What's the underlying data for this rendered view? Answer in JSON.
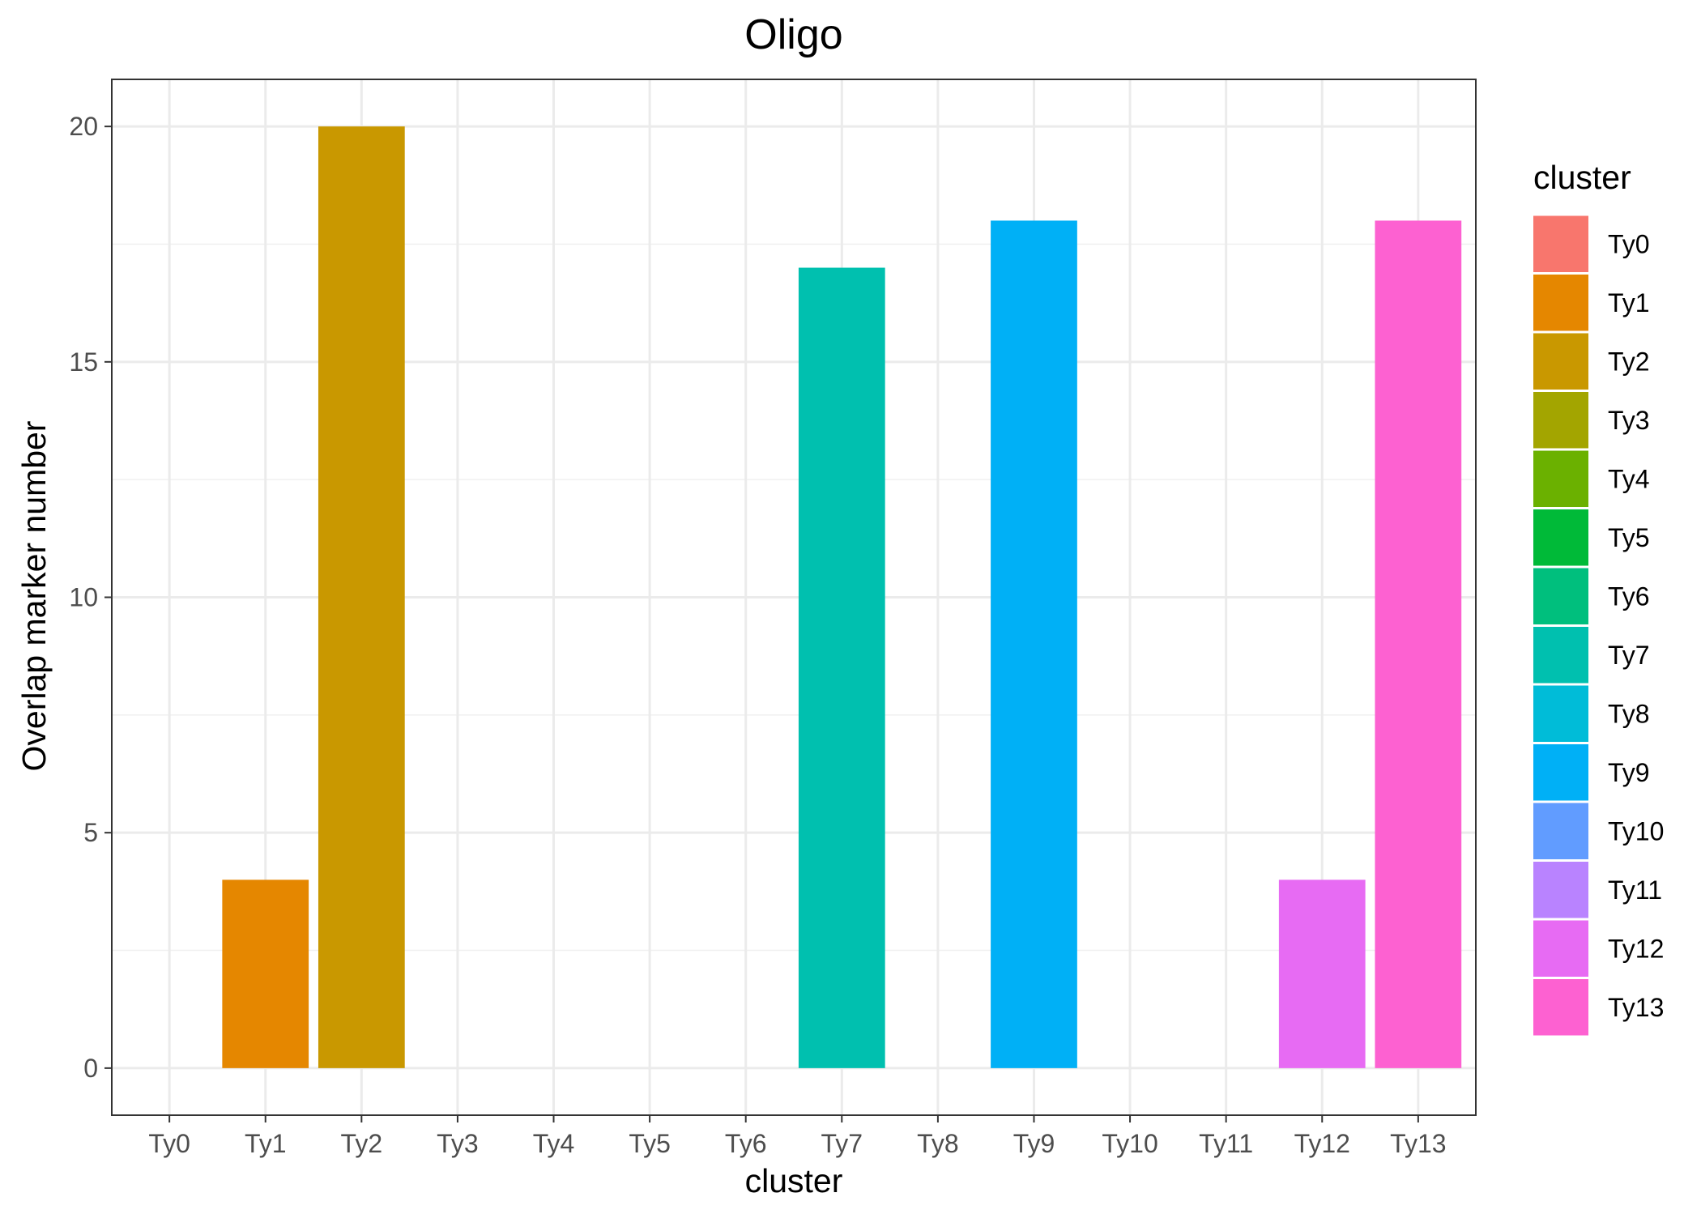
{
  "chart_data": {
    "type": "bar",
    "title": "Oligo",
    "xlabel": "cluster",
    "ylabel": "Overlap marker number",
    "categories": [
      "Ty0",
      "Ty1",
      "Ty2",
      "Ty3",
      "Ty4",
      "Ty5",
      "Ty6",
      "Ty7",
      "Ty8",
      "Ty9",
      "Ty10",
      "Ty11",
      "Ty12",
      "Ty13"
    ],
    "values": [
      0,
      4,
      20,
      0,
      0,
      0,
      0,
      17,
      0,
      18,
      0,
      0,
      4,
      18
    ],
    "ylim": [
      -1,
      21
    ],
    "yticks": [
      0,
      5,
      10,
      15,
      20
    ],
    "grid": true,
    "legend": {
      "title": "cluster",
      "position": "right",
      "entries": [
        "Ty0",
        "Ty1",
        "Ty2",
        "Ty3",
        "Ty4",
        "Ty5",
        "Ty6",
        "Ty7",
        "Ty8",
        "Ty9",
        "Ty10",
        "Ty11",
        "Ty12",
        "Ty13"
      ]
    },
    "colors": [
      "#F8766D",
      "#E58700",
      "#C99800",
      "#A3A500",
      "#6BB100",
      "#00BA38",
      "#00BF7D",
      "#00C0AF",
      "#00BCD8",
      "#00B0F6",
      "#619CFF",
      "#B983FF",
      "#E76BF3",
      "#FD61D1"
    ]
  }
}
